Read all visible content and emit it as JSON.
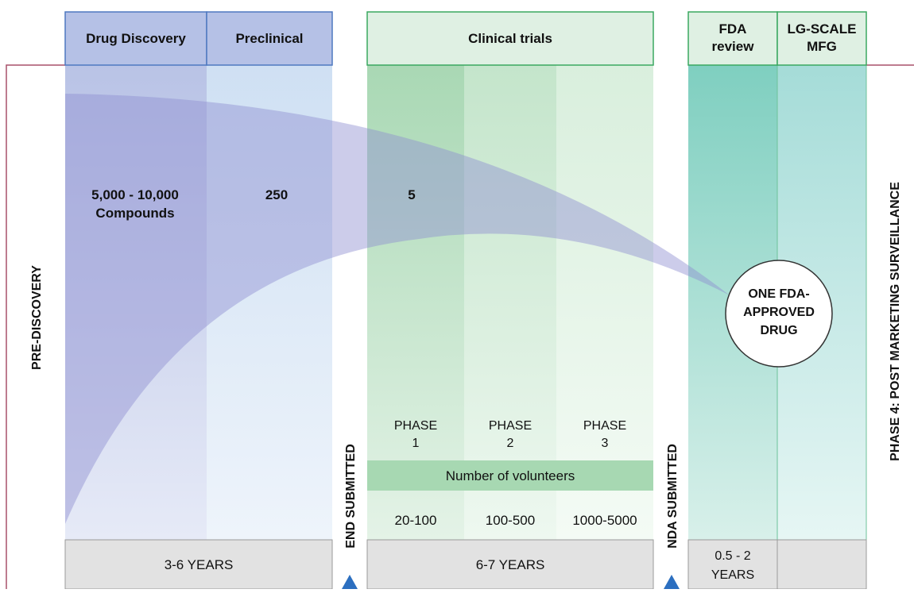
{
  "stages": {
    "drug_discovery": "Drug Discovery",
    "preclinical": "Preclinical",
    "clinical_trials": "Clinical trials",
    "fda_review": [
      "FDA",
      "review"
    ],
    "mfg": [
      "LG-SCALE",
      "MFG"
    ]
  },
  "counts": {
    "compounds": [
      "5,000 - 10,000",
      "Compounds"
    ],
    "preclinical": "250",
    "clinical": "5"
  },
  "result": [
    "ONE FDA-",
    "APPROVED",
    "DRUG"
  ],
  "side_labels": {
    "pre_discovery": "PRE-DISCOVERY",
    "end_submitted": "END SUBMITTED",
    "nda_submitted": "NDA SUBMITTED",
    "phase4": "PHASE 4: POST MARKETING SURVEILLANCE"
  },
  "phases": [
    {
      "name": [
        "PHASE",
        "1"
      ],
      "volunteers": "20-100"
    },
    {
      "name": [
        "PHASE",
        "2"
      ],
      "volunteers": "100-500"
    },
    {
      "name": [
        "PHASE",
        "3"
      ],
      "volunteers": "1000-5000"
    }
  ],
  "volunteers_label": "Number of volunteers",
  "durations": {
    "discovery": "3-6 YEARS",
    "clinical": "6-7 YEARS",
    "fda": [
      "0.5 - 2",
      "YEARS"
    ]
  }
}
